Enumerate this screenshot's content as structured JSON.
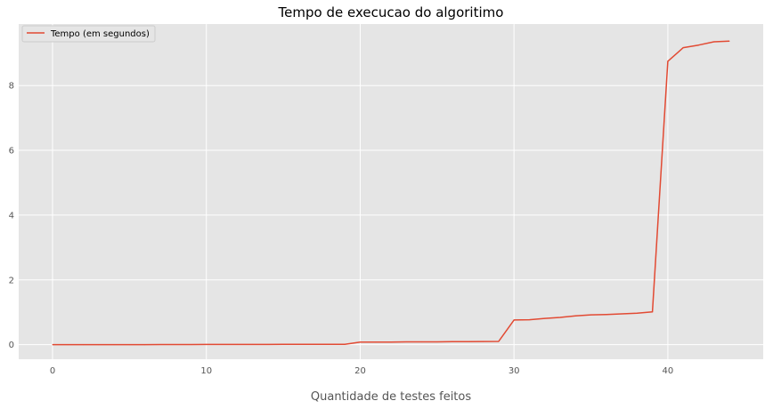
{
  "chart_data": {
    "type": "line",
    "title": "Tempo de execucao do algoritimo",
    "xlabel": "Quantidade de testes feitos",
    "ylabel": "",
    "xlim": [
      -2.2,
      46.2
    ],
    "ylim": [
      -0.45,
      9.9
    ],
    "xticks": [
      0,
      10,
      20,
      30,
      40
    ],
    "yticks": [
      0,
      2,
      4,
      6,
      8
    ],
    "grid": true,
    "legend_position": "top-left",
    "colors": {
      "plot_background": "#e5e5e5",
      "grid": "#ffffff",
      "line": "#e24a33",
      "legend_background": "#e5e5e5",
      "legend_border": "#cccccc"
    },
    "series": [
      {
        "name": "Tempo (em segundos)",
        "color": "#e24a33",
        "x": [
          0,
          1,
          2,
          3,
          4,
          5,
          6,
          7,
          8,
          9,
          10,
          11,
          12,
          13,
          14,
          15,
          16,
          17,
          18,
          19,
          20,
          21,
          22,
          23,
          24,
          25,
          26,
          27,
          28,
          29,
          30,
          31,
          32,
          33,
          34,
          35,
          36,
          37,
          38,
          39,
          40,
          41,
          42,
          43,
          44
        ],
        "y": [
          0.001,
          0.001,
          0.001,
          0.001,
          0.001,
          0.001,
          0.001,
          0.002,
          0.002,
          0.003,
          0.005,
          0.005,
          0.006,
          0.006,
          0.007,
          0.008,
          0.009,
          0.01,
          0.01,
          0.01,
          0.08,
          0.08,
          0.08,
          0.085,
          0.085,
          0.085,
          0.09,
          0.09,
          0.095,
          0.1,
          0.76,
          0.77,
          0.81,
          0.84,
          0.89,
          0.92,
          0.93,
          0.95,
          0.97,
          1.01,
          8.75,
          9.17,
          9.25,
          9.35,
          9.37
        ]
      }
    ]
  }
}
